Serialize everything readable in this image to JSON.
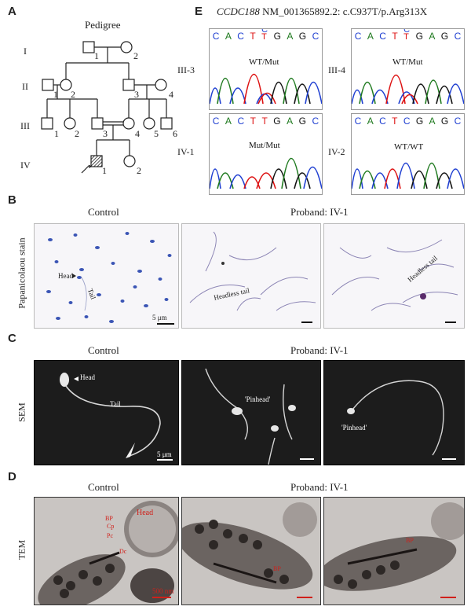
{
  "panels": {
    "A": "A",
    "B": "B",
    "C": "C",
    "D": "D",
    "E": "E"
  },
  "pedigree": {
    "title": "Pedigree",
    "generations": [
      "I",
      "II",
      "III",
      "IV"
    ],
    "indiv": {
      "i1": "1",
      "i2": "2",
      "ii1": "1",
      "ii2": "2",
      "ii3": "3",
      "ii4": "4",
      "iii1": "1",
      "iii2": "2",
      "iii3": "3",
      "iii4": "4",
      "iii5": "5",
      "iii6": "6",
      "iv1": "1",
      "iv2": "2"
    }
  },
  "sequencing": {
    "gene": "CCDC188",
    "variant": "NM_001365892.2: c.C937T/p.Arg313X",
    "bases": [
      "C",
      "A",
      "C",
      "T",
      "C",
      "G",
      "A",
      "G",
      "C"
    ],
    "alt_top": "C",
    "alt_bottom": "T",
    "samples": [
      {
        "id": "III-3",
        "genotype": "WT/Mut"
      },
      {
        "id": "III-4",
        "genotype": "WT/Mut"
      },
      {
        "id": "IV-1",
        "genotype": "Mut/Mut"
      },
      {
        "id": "IV-2",
        "genotype": "WT/WT"
      }
    ]
  },
  "rows": {
    "control": "Control",
    "proband": "Proband: IV-1",
    "pap_label": "Papanicolaou stain",
    "sem_label": "SEM",
    "tem_label": "TEM"
  },
  "annotations": {
    "head": "Head",
    "tail": "Tail",
    "headless_tail": "Headless tail",
    "pinhead": "'Pinhead'",
    "scale": "5 μm",
    "tem_scale": "500 nm",
    "tem_head": "Head",
    "tem_bp": "BP",
    "tem_cp": "Cp",
    "tem_pc": "Pc",
    "tem_dc": "Dc"
  },
  "colors": {
    "A": "#1f7a1f",
    "C": "#1f3fd1",
    "G": "#111111",
    "T": "#d11111",
    "annot_red": "#d0201a"
  }
}
